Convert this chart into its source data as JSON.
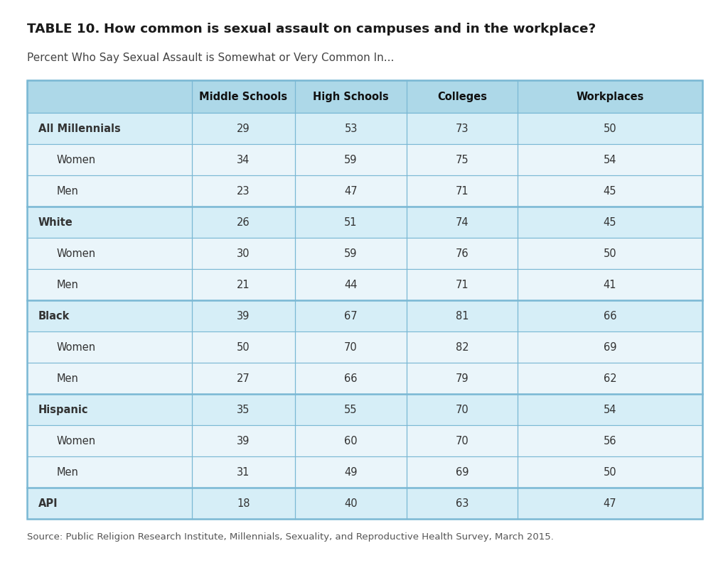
{
  "title_bold": "TABLE 10.  ",
  "title_rest": "How common is sexual assault on campuses and in the workplace?",
  "subtitle": "Percent Who Say Sexual Assault is Somewhat or Very Common In...",
  "columns": [
    "",
    "Middle Schools",
    "High Schools",
    "Colleges",
    "Workplaces"
  ],
  "rows": [
    {
      "label": "All Millennials",
      "bold": true,
      "indent": false,
      "values": [
        "29",
        "53",
        "73",
        "50"
      ],
      "group_start": true
    },
    {
      "label": "Women",
      "bold": false,
      "indent": true,
      "values": [
        "34",
        "59",
        "75",
        "54"
      ],
      "group_start": false
    },
    {
      "label": "Men",
      "bold": false,
      "indent": true,
      "values": [
        "23",
        "47",
        "71",
        "45"
      ],
      "group_start": false
    },
    {
      "label": "White",
      "bold": true,
      "indent": false,
      "values": [
        "26",
        "51",
        "74",
        "45"
      ],
      "group_start": true
    },
    {
      "label": "Women",
      "bold": false,
      "indent": true,
      "values": [
        "30",
        "59",
        "76",
        "50"
      ],
      "group_start": false
    },
    {
      "label": "Men",
      "bold": false,
      "indent": true,
      "values": [
        "21",
        "44",
        "71",
        "41"
      ],
      "group_start": false
    },
    {
      "label": "Black",
      "bold": true,
      "indent": false,
      "values": [
        "39",
        "67",
        "81",
        "66"
      ],
      "group_start": true
    },
    {
      "label": "Women",
      "bold": false,
      "indent": true,
      "values": [
        "50",
        "70",
        "82",
        "69"
      ],
      "group_start": false
    },
    {
      "label": "Men",
      "bold": false,
      "indent": true,
      "values": [
        "27",
        "66",
        "79",
        "62"
      ],
      "group_start": false
    },
    {
      "label": "Hispanic",
      "bold": true,
      "indent": false,
      "values": [
        "35",
        "55",
        "70",
        "54"
      ],
      "group_start": true
    },
    {
      "label": "Women",
      "bold": false,
      "indent": true,
      "values": [
        "39",
        "60",
        "70",
        "56"
      ],
      "group_start": false
    },
    {
      "label": "Men",
      "bold": false,
      "indent": true,
      "values": [
        "31",
        "49",
        "69",
        "50"
      ],
      "group_start": false
    },
    {
      "label": "API",
      "bold": true,
      "indent": false,
      "values": [
        "18",
        "40",
        "63",
        "47"
      ],
      "group_start": true
    }
  ],
  "source": "Source: Public Religion Research Institute, Millennials, Sexuality, and Reproductive Health Survey, March 2015.",
  "header_bg": "#add8e8",
  "group_header_bg": "#d6eef7",
  "subrow_bg": "#eaf5fa",
  "white_bg": "#ffffff",
  "border_color": "#7ab8d4",
  "title_color": "#1a1a1a",
  "subtitle_color": "#444444",
  "header_text_color": "#111111",
  "data_text_color": "#333333",
  "source_color": "#555555",
  "fig_width": 10.24,
  "fig_height": 8.04,
  "dpi": 100
}
